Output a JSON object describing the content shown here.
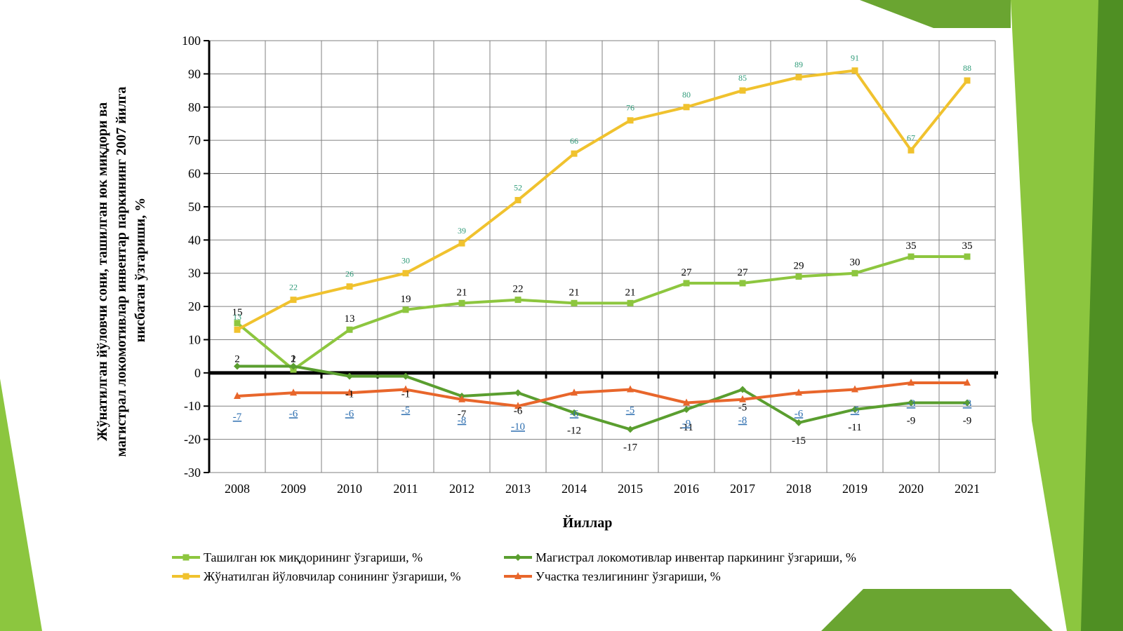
{
  "colors": {
    "deco_light": "#8cc63f",
    "deco_mid": "#6aa531",
    "deco_dark": "#4f8f23",
    "plot_bg": "#ffffff",
    "grid": "#808080"
  },
  "chart_data": {
    "type": "line",
    "xlabel": "Йиллар",
    "ylabel_lines": [
      "Жўнатилган йўловчи сони, ташилган юк миқдори ва",
      "магистрал локомотивлар инвентар паркининг 2007 йилга",
      "нисбатан ўзгариши, %"
    ],
    "categories": [
      "2008",
      "2009",
      "2010",
      "2011",
      "2012",
      "2013",
      "2014",
      "2015",
      "2016",
      "2017",
      "2018",
      "2019",
      "2020",
      "2021"
    ],
    "ylim": [
      -30,
      100
    ],
    "yticks": [
      -30,
      -20,
      -10,
      0,
      10,
      20,
      30,
      40,
      50,
      60,
      70,
      80,
      90,
      100
    ],
    "grid": true,
    "legend_position": "bottom",
    "series": [
      {
        "name": "Ташилган юк миқдорининг ўзгариши, %",
        "color": "#8dc63f",
        "marker": "square",
        "label_style": "black",
        "values": [
          15,
          1,
          13,
          19,
          21,
          22,
          21,
          21,
          27,
          27,
          29,
          30,
          35,
          35
        ]
      },
      {
        "name": "Магистрал локомотивлар инвентар паркининг ўзгариши, %",
        "color": "#5a9e2f",
        "marker": "diamond",
        "label_style": "black",
        "values": [
          2,
          2,
          -1,
          -1,
          -7,
          -6,
          -12,
          -17,
          -11,
          -5,
          -15,
          -11,
          -9,
          -9
        ]
      },
      {
        "name": "Жўнатилган йўловчилар сонининг ўзгариши, %",
        "color": "#f0c22e",
        "marker": "square",
        "label_style": "teal",
        "values": [
          13,
          22,
          26,
          30,
          39,
          52,
          66,
          76,
          80,
          85,
          89,
          91,
          67,
          88
        ]
      },
      {
        "name": "Участка тезлигининг ўзгариши, %",
        "color": "#e8662b",
        "marker": "triangle",
        "label_style": "blue",
        "values": [
          -7,
          -6,
          -6,
          -5,
          -8,
          -10,
          -6,
          -5,
          -9,
          -8,
          -6,
          -5,
          -3,
          -3
        ]
      }
    ]
  }
}
